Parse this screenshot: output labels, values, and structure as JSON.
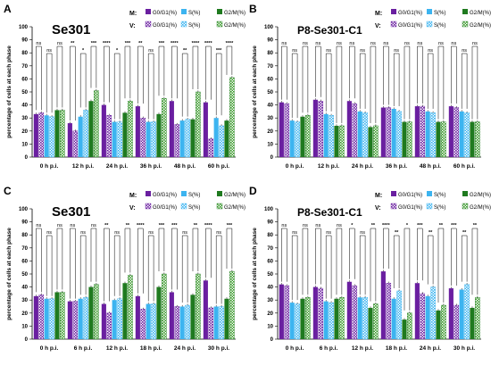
{
  "figure": {
    "series_legend": [
      {
        "key": "g0g1",
        "label": "G0/G1(%)"
      },
      {
        "key": "s",
        "label": "S(%)"
      },
      {
        "key": "g2m",
        "label": "G2/M(%)"
      }
    ],
    "row_labels": [
      "M:",
      "V:"
    ],
    "colors": {
      "g0g1": "#6a1fa0",
      "s": "#3cb4f0",
      "g2m": "#1f7a1f"
    }
  },
  "chart_data": [
    {
      "panel": "A",
      "type": "bar",
      "title": "Se301",
      "xlabel": "",
      "ylabel": "percentage of cells at each phase",
      "ylim": [
        0,
        100
      ],
      "yticks": [
        0,
        10,
        20,
        30,
        40,
        50,
        60,
        70,
        80,
        90,
        100
      ],
      "categories": [
        "0 h p.i.",
        "12 h p.i.",
        "24 h p.i.",
        "36 h p.i.",
        "48 h p.i.",
        "60 h p.i."
      ],
      "series": [
        {
          "name": "G0/G1(%)",
          "row": "M",
          "values": [
            33,
            26,
            40,
            39,
            43,
            42
          ]
        },
        {
          "name": "G0/G1(%)",
          "row": "V",
          "values": [
            34,
            20,
            32,
            30,
            25,
            14
          ]
        },
        {
          "name": "S(%)",
          "row": "M",
          "values": [
            32,
            31,
            27,
            27,
            28,
            30
          ]
        },
        {
          "name": "S(%)",
          "row": "V",
          "values": [
            31,
            36,
            27,
            27,
            29,
            24
          ]
        },
        {
          "name": "G2/M(%)",
          "row": "M",
          "values": [
            36,
            43,
            34,
            33,
            29,
            28
          ]
        },
        {
          "name": "G2/M(%)",
          "row": "V",
          "values": [
            36,
            51,
            43,
            45,
            50,
            61
          ]
        }
      ],
      "significance": [
        [
          "ns",
          "ns",
          "ns"
        ],
        [
          "**",
          "*",
          "***"
        ],
        [
          "****",
          "*",
          "***"
        ],
        [
          "**",
          "ns",
          "***"
        ],
        [
          "****",
          "**",
          "****"
        ],
        [
          "****",
          "***",
          "****"
        ]
      ]
    },
    {
      "panel": "B",
      "type": "bar",
      "title": "P8-Se301-C1",
      "xlabel": "",
      "ylabel": "percentage of cells at each phase",
      "ylim": [
        0,
        100
      ],
      "yticks": [
        0,
        10,
        20,
        30,
        40,
        50,
        60,
        70,
        80,
        90,
        100
      ],
      "categories": [
        "0 h p.i.",
        "12 h p.i.",
        "24 h p.i.",
        "36 h p.i.",
        "48 h p.i.",
        "60 h p.i."
      ],
      "series": [
        {
          "name": "G0/G1(%)",
          "row": "M",
          "values": [
            42,
            44,
            43,
            38,
            39,
            39
          ]
        },
        {
          "name": "G0/G1(%)",
          "row": "V",
          "values": [
            41,
            43,
            41,
            38,
            39,
            38
          ]
        },
        {
          "name": "S(%)",
          "row": "M",
          "values": [
            28,
            33,
            35,
            37,
            35,
            35
          ]
        },
        {
          "name": "S(%)",
          "row": "V",
          "values": [
            27,
            32,
            34,
            35,
            34,
            34
          ]
        },
        {
          "name": "G2/M(%)",
          "row": "M",
          "values": [
            31,
            24,
            23,
            27,
            27,
            27
          ]
        },
        {
          "name": "G2/M(%)",
          "row": "V",
          "values": [
            32,
            24,
            24,
            27,
            27,
            27
          ]
        }
      ],
      "significance": [
        [
          "ns",
          "ns",
          "ns"
        ],
        [
          "ns",
          "ns",
          "ns"
        ],
        [
          "ns",
          "ns",
          "ns"
        ],
        [
          "ns",
          "ns",
          "ns"
        ],
        [
          "ns",
          "ns",
          "ns"
        ],
        [
          "ns",
          "ns",
          "ns"
        ]
      ]
    },
    {
      "panel": "C",
      "type": "bar",
      "title": "Se301",
      "xlabel": "",
      "ylabel": "percentage of cells at each phase",
      "ylim": [
        0,
        100
      ],
      "yticks": [
        0,
        10,
        20,
        30,
        40,
        50,
        60,
        70,
        80,
        90,
        100
      ],
      "categories": [
        "0 h p.i.",
        "6 h p.i.",
        "12 h p.i.",
        "18 h p.i.",
        "24 h p.i.",
        "30 h p.i."
      ],
      "series": [
        {
          "name": "G0/G1(%)",
          "row": "M",
          "values": [
            33,
            29,
            27,
            33,
            36,
            45
          ]
        },
        {
          "name": "G0/G1(%)",
          "row": "V",
          "values": [
            34,
            29,
            20,
            23,
            25,
            24
          ]
        },
        {
          "name": "S(%)",
          "row": "M",
          "values": [
            31,
            31,
            30,
            27,
            25,
            25
          ]
        },
        {
          "name": "S(%)",
          "row": "V",
          "values": [
            31,
            32,
            31,
            27,
            26,
            25
          ]
        },
        {
          "name": "G2/M(%)",
          "row": "M",
          "values": [
            36,
            40,
            43,
            40,
            34,
            31
          ]
        },
        {
          "name": "G2/M(%)",
          "row": "V",
          "values": [
            36,
            42,
            49,
            50,
            50,
            52
          ]
        }
      ],
      "significance": [
        [
          "ns",
          "ns",
          "ns"
        ],
        [
          "ns",
          "ns",
          "ns"
        ],
        [
          "**",
          "ns",
          "**"
        ],
        [
          "****",
          "ns",
          "***"
        ],
        [
          "***",
          "ns",
          "**"
        ],
        [
          "****",
          "ns",
          "***"
        ]
      ]
    },
    {
      "panel": "D",
      "type": "bar",
      "title": "P8-Se301-C1",
      "xlabel": "",
      "ylabel": "percentage of cells at each phase",
      "ylim": [
        0,
        100
      ],
      "yticks": [
        0,
        10,
        20,
        30,
        40,
        50,
        60,
        70,
        80,
        90,
        100
      ],
      "categories": [
        "0 h p.i.",
        "6 h p.i.",
        "12 h p.i.",
        "18 h p.i.",
        "24 h p.i.",
        "30 h p.i."
      ],
      "series": [
        {
          "name": "G0/G1(%)",
          "row": "M",
          "values": [
            42,
            40,
            44,
            52,
            43,
            39
          ]
        },
        {
          "name": "G0/G1(%)",
          "row": "V",
          "values": [
            41,
            39,
            41,
            43,
            35,
            26
          ]
        },
        {
          "name": "S(%)",
          "row": "M",
          "values": [
            28,
            29,
            32,
            31,
            33,
            38
          ]
        },
        {
          "name": "S(%)",
          "row": "V",
          "values": [
            27,
            28,
            32,
            37,
            40,
            42
          ]
        },
        {
          "name": "G2/M(%)",
          "row": "M",
          "values": [
            31,
            31,
            24,
            15,
            22,
            24
          ]
        },
        {
          "name": "G2/M(%)",
          "row": "V",
          "values": [
            32,
            32,
            27,
            20,
            26,
            32
          ]
        }
      ],
      "significance": [
        [
          "ns",
          "ns",
          "ns"
        ],
        [
          "ns",
          "ns",
          "ns"
        ],
        [
          "*",
          "ns",
          "**"
        ],
        [
          "****",
          "**",
          "*"
        ],
        [
          "***",
          "**",
          "**"
        ],
        [
          "***",
          "**",
          "**"
        ]
      ]
    }
  ]
}
